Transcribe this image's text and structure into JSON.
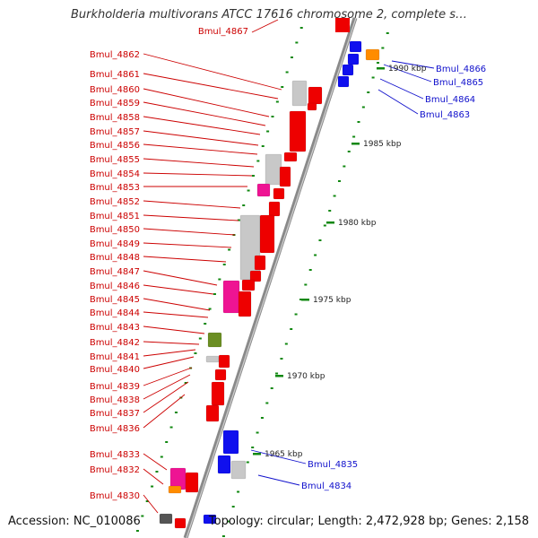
{
  "title": "Burkholderia multivorans ATCC 17616 chromosome 2, complete s…",
  "accession": "Accession: NC_010086",
  "summary": "Topology: circular; Length: 2,472,928 bp; Genes: 2,158",
  "colors": {
    "backbone": "#888888",
    "forward_gene": "#ee0000",
    "reverse_gene": "#1010ee",
    "tick": "#118811",
    "left_label": "#cc0000",
    "right_label": "#1010cc"
  },
  "scale_ticks": [
    "1965 kbp",
    "1970 kbp",
    "1975 kbp",
    "1980 kbp",
    "1985 kbp",
    "1990 kbp"
  ],
  "left_labels": [
    "Bmul_4867",
    "Bmul_4862",
    "Bmul_4861",
    "Bmul_4860",
    "Bmul_4859",
    "Bmul_4858",
    "Bmul_4857",
    "Bmul_4856",
    "Bmul_4855",
    "Bmul_4854",
    "Bmul_4853",
    "Bmul_4852",
    "Bmul_4851",
    "Bmul_4850",
    "Bmul_4849",
    "Bmul_4848",
    "Bmul_4847",
    "Bmul_4846",
    "Bmul_4845",
    "Bmul_4844",
    "Bmul_4843",
    "Bmul_4842",
    "Bmul_4841",
    "Bmul_4840",
    "Bmul_4839",
    "Bmul_4838",
    "Bmul_4837",
    "Bmul_4836",
    "Bmul_4833",
    "Bmul_4832",
    "Bmul_4830"
  ],
  "right_labels": [
    "Bmul_4866",
    "Bmul_4865",
    "Bmul_4864",
    "Bmul_4863",
    "Bmul_4835",
    "Bmul_4834"
  ]
}
